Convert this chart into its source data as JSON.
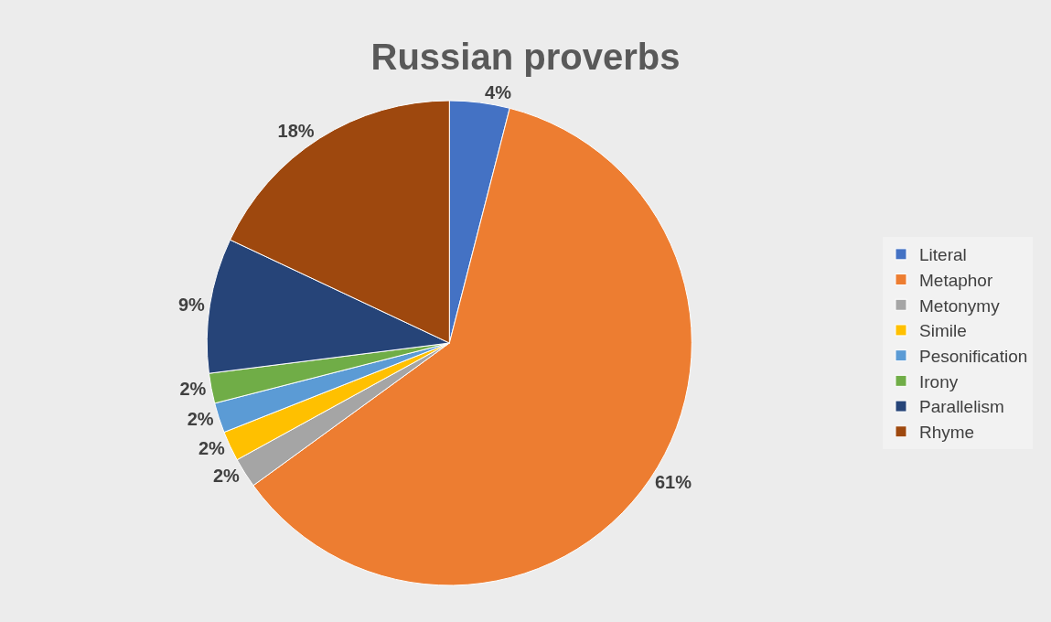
{
  "chart_data": {
    "type": "pie",
    "title": "Russian proverbs",
    "categories": [
      "Literal",
      "Metaphor",
      "Metonymy",
      "Simile",
      "Pesonification",
      "Irony",
      "Parallelism",
      "Rhyme"
    ],
    "values": [
      4,
      61,
      2,
      2,
      2,
      2,
      9,
      18
    ],
    "value_labels": [
      "4%",
      "61%",
      "2%",
      "2%",
      "2%",
      "2%",
      "9%",
      "18%"
    ],
    "colors": [
      "#4472c4",
      "#ed7d31",
      "#a5a5a5",
      "#ffc000",
      "#5b9bd5",
      "#70ad47",
      "#264478",
      "#9e480e"
    ],
    "legend": "right"
  }
}
